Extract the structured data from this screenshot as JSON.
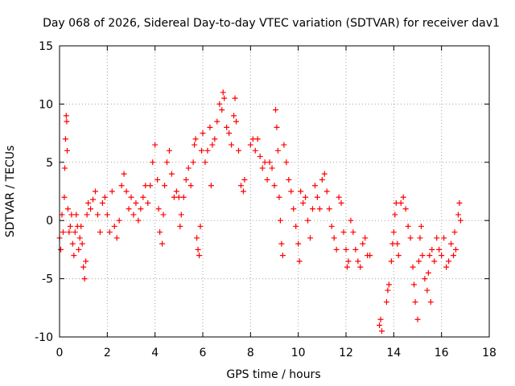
{
  "chart_data": {
    "type": "scatter",
    "title": "Day 068 of 2026, Sidereal Day-to-day VTEC variation (SDTVAR) for receiver dav1",
    "xlabel": "GPS time / hours",
    "ylabel": "SDTVAR / TECUs",
    "xlim": [
      0,
      18
    ],
    "ylim": [
      -10,
      15
    ],
    "xticks": [
      "0",
      "2",
      "4",
      "6",
      "8",
      "10",
      "12",
      "14",
      "16",
      "18"
    ],
    "yticks": [
      "-10",
      "-5",
      "0",
      "5",
      "10",
      "15"
    ],
    "grid": true,
    "marker": "+",
    "color": "#ff0000",
    "series": [
      {
        "name": "SDTVAR dav1",
        "points": [
          [
            0.0,
            -1.5
          ],
          [
            0.05,
            -2.5
          ],
          [
            0.1,
            0.5
          ],
          [
            0.15,
            -1.0
          ],
          [
            0.2,
            2.0
          ],
          [
            0.22,
            4.5
          ],
          [
            0.25,
            7.0
          ],
          [
            0.28,
            9.0
          ],
          [
            0.3,
            8.5
          ],
          [
            0.32,
            6.0
          ],
          [
            0.35,
            1.0
          ],
          [
            0.4,
            -1.0
          ],
          [
            0.45,
            -0.5
          ],
          [
            0.5,
            0.5
          ],
          [
            0.55,
            -2.0
          ],
          [
            0.6,
            -3.0
          ],
          [
            0.65,
            -1.0
          ],
          [
            0.7,
            0.5
          ],
          [
            0.75,
            -0.5
          ],
          [
            0.8,
            -2.5
          ],
          [
            0.85,
            -1.5
          ],
          [
            0.9,
            -0.5
          ],
          [
            0.95,
            -2.0
          ],
          [
            1.0,
            -4.0
          ],
          [
            1.05,
            -5.0
          ],
          [
            1.1,
            -3.5
          ],
          [
            1.15,
            0.5
          ],
          [
            1.2,
            1.5
          ],
          [
            1.3,
            1.0
          ],
          [
            1.4,
            1.8
          ],
          [
            1.5,
            2.5
          ],
          [
            1.6,
            0.5
          ],
          [
            1.7,
            -1.0
          ],
          [
            1.8,
            1.5
          ],
          [
            1.9,
            2.0
          ],
          [
            2.0,
            0.5
          ],
          [
            2.1,
            -1.0
          ],
          [
            2.2,
            2.5
          ],
          [
            2.3,
            -0.5
          ],
          [
            2.4,
            -1.5
          ],
          [
            2.5,
            0.0
          ],
          [
            2.6,
            3.0
          ],
          [
            2.7,
            4.0
          ],
          [
            2.8,
            2.5
          ],
          [
            2.9,
            1.0
          ],
          [
            3.0,
            2.0
          ],
          [
            3.1,
            0.5
          ],
          [
            3.2,
            1.5
          ],
          [
            3.3,
            0.0
          ],
          [
            3.4,
            1.0
          ],
          [
            3.5,
            2.0
          ],
          [
            3.6,
            3.0
          ],
          [
            3.7,
            1.5
          ],
          [
            3.8,
            3.0
          ],
          [
            3.9,
            5.0
          ],
          [
            4.0,
            6.5
          ],
          [
            4.1,
            3.5
          ],
          [
            4.15,
            1.0
          ],
          [
            4.2,
            -1.0
          ],
          [
            4.3,
            -2.0
          ],
          [
            4.35,
            0.5
          ],
          [
            4.4,
            3.0
          ],
          [
            4.5,
            5.0
          ],
          [
            4.6,
            6.0
          ],
          [
            4.7,
            4.0
          ],
          [
            4.8,
            2.0
          ],
          [
            4.9,
            2.5
          ],
          [
            5.0,
            2.0
          ],
          [
            5.05,
            -0.5
          ],
          [
            5.1,
            0.5
          ],
          [
            5.2,
            2.0
          ],
          [
            5.3,
            3.5
          ],
          [
            5.4,
            4.5
          ],
          [
            5.5,
            3.0
          ],
          [
            5.6,
            5.0
          ],
          [
            5.65,
            6.5
          ],
          [
            5.7,
            7.0
          ],
          [
            5.75,
            -1.5
          ],
          [
            5.8,
            -2.5
          ],
          [
            5.85,
            -3.0
          ],
          [
            5.9,
            -0.5
          ],
          [
            5.95,
            6.0
          ],
          [
            6.0,
            7.5
          ],
          [
            6.1,
            5.0
          ],
          [
            6.2,
            6.0
          ],
          [
            6.3,
            8.0
          ],
          [
            6.35,
            3.0
          ],
          [
            6.4,
            6.5
          ],
          [
            6.5,
            7.0
          ],
          [
            6.6,
            8.5
          ],
          [
            6.7,
            10.0
          ],
          [
            6.8,
            9.5
          ],
          [
            6.85,
            11.0
          ],
          [
            6.9,
            10.5
          ],
          [
            7.0,
            8.0
          ],
          [
            7.1,
            7.5
          ],
          [
            7.2,
            6.5
          ],
          [
            7.3,
            9.0
          ],
          [
            7.35,
            10.5
          ],
          [
            7.4,
            8.5
          ],
          [
            7.5,
            6.0
          ],
          [
            7.6,
            3.0
          ],
          [
            7.7,
            2.5
          ],
          [
            7.75,
            3.5
          ],
          [
            8.0,
            6.5
          ],
          [
            8.1,
            7.0
          ],
          [
            8.2,
            6.0
          ],
          [
            8.3,
            7.0
          ],
          [
            8.4,
            5.5
          ],
          [
            8.5,
            4.5
          ],
          [
            8.6,
            5.0
          ],
          [
            8.7,
            3.5
          ],
          [
            8.8,
            5.0
          ],
          [
            8.9,
            4.5
          ],
          [
            9.0,
            3.0
          ],
          [
            9.05,
            9.5
          ],
          [
            9.1,
            8.0
          ],
          [
            9.15,
            6.0
          ],
          [
            9.2,
            2.0
          ],
          [
            9.25,
            0.0
          ],
          [
            9.3,
            -2.0
          ],
          [
            9.35,
            -3.0
          ],
          [
            9.4,
            6.5
          ],
          [
            9.5,
            5.0
          ],
          [
            9.6,
            3.5
          ],
          [
            9.7,
            2.5
          ],
          [
            9.8,
            1.0
          ],
          [
            9.9,
            -0.5
          ],
          [
            10.0,
            -2.0
          ],
          [
            10.05,
            -3.5
          ],
          [
            10.1,
            2.5
          ],
          [
            10.2,
            1.5
          ],
          [
            10.3,
            2.0
          ],
          [
            10.4,
            0.0
          ],
          [
            10.5,
            -1.5
          ],
          [
            10.6,
            1.0
          ],
          [
            10.7,
            3.0
          ],
          [
            10.8,
            2.0
          ],
          [
            10.9,
            1.0
          ],
          [
            11.0,
            3.5
          ],
          [
            11.1,
            4.0
          ],
          [
            11.2,
            2.5
          ],
          [
            11.3,
            1.0
          ],
          [
            11.4,
            -0.5
          ],
          [
            11.5,
            -1.5
          ],
          [
            11.6,
            -2.5
          ],
          [
            11.7,
            2.0
          ],
          [
            11.8,
            1.5
          ],
          [
            11.9,
            -1.0
          ],
          [
            12.0,
            -2.5
          ],
          [
            12.05,
            -4.0
          ],
          [
            12.1,
            -3.5
          ],
          [
            12.2,
            0.0
          ],
          [
            12.3,
            -1.0
          ],
          [
            12.4,
            -2.5
          ],
          [
            12.5,
            -3.5
          ],
          [
            12.6,
            -4.0
          ],
          [
            12.7,
            -2.0
          ],
          [
            12.8,
            -1.5
          ],
          [
            12.9,
            -3.0
          ],
          [
            13.0,
            -3.0
          ],
          [
            13.4,
            -9.0
          ],
          [
            13.45,
            -8.5
          ],
          [
            13.5,
            -9.5
          ],
          [
            13.7,
            -7.0
          ],
          [
            13.75,
            -6.0
          ],
          [
            13.8,
            -5.5
          ],
          [
            13.9,
            -3.5
          ],
          [
            13.95,
            -2.0
          ],
          [
            14.0,
            -1.0
          ],
          [
            14.05,
            0.5
          ],
          [
            14.1,
            1.5
          ],
          [
            14.15,
            -2.0
          ],
          [
            14.2,
            -3.0
          ],
          [
            14.3,
            1.5
          ],
          [
            14.4,
            2.0
          ],
          [
            14.5,
            1.0
          ],
          [
            14.6,
            -0.5
          ],
          [
            14.7,
            -1.5
          ],
          [
            14.8,
            -4.0
          ],
          [
            14.85,
            -5.5
          ],
          [
            14.9,
            -7.0
          ],
          [
            15.0,
            -8.5
          ],
          [
            15.05,
            -3.5
          ],
          [
            15.1,
            -1.5
          ],
          [
            15.15,
            -0.5
          ],
          [
            15.2,
            -3.0
          ],
          [
            15.3,
            -5.0
          ],
          [
            15.4,
            -6.0
          ],
          [
            15.45,
            -4.5
          ],
          [
            15.5,
            -3.0
          ],
          [
            15.55,
            -7.0
          ],
          [
            15.6,
            -2.5
          ],
          [
            15.7,
            -3.5
          ],
          [
            15.8,
            -1.5
          ],
          [
            15.9,
            -2.5
          ],
          [
            16.0,
            -3.0
          ],
          [
            16.1,
            -1.5
          ],
          [
            16.2,
            -4.0
          ],
          [
            16.3,
            -3.5
          ],
          [
            16.4,
            -2.0
          ],
          [
            16.5,
            -3.0
          ],
          [
            16.55,
            -1.0
          ],
          [
            16.6,
            -2.5
          ],
          [
            16.7,
            0.5
          ],
          [
            16.75,
            1.5
          ],
          [
            16.8,
            0.0
          ]
        ]
      }
    ]
  }
}
